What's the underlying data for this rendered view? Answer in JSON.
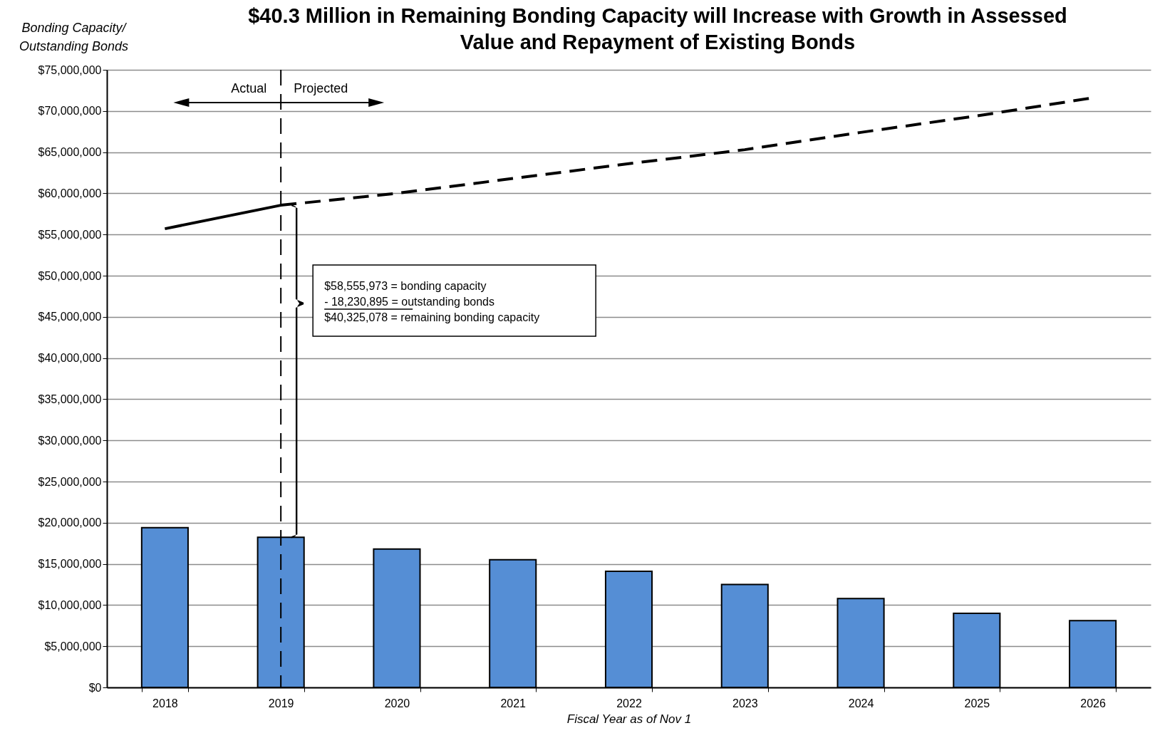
{
  "chart_data": {
    "type": "bar",
    "title": "$40.3 Million in Remaining Bonding Capacity will Increase with Growth in Assessed Value and Repayment of Existing Bonds",
    "xlabel": "Fiscal Year as of Nov 1",
    "ylabel": "Bonding Capacity/ Outstanding Bonds",
    "categories": [
      "2018",
      "2019",
      "2020",
      "2021",
      "2022",
      "2023",
      "2024",
      "2025",
      "2026"
    ],
    "series": [
      {
        "color": "#558ed5",
        "values": [
          19400000,
          18230895,
          16800000,
          15500000,
          14100000,
          12500000,
          10800000,
          9000000,
          8100000
        ]
      },
      {
        "type": "line",
        "color": "#000000",
        "line_style": "solid",
        "values": [
          55700000,
          58555973,
          null,
          null,
          null,
          null,
          null,
          null,
          null
        ]
      },
      {
        "type": "line",
        "color": "#000000",
        "line_style": "dashed",
        "values": [
          null,
          58555973,
          60000000,
          61800000,
          63600000,
          65300000,
          67400000,
          69400000,
          71600000
        ]
      }
    ],
    "ylim": [
      0,
      75000000
    ],
    "yticks": [
      {
        "value": 0,
        "label": "$0"
      },
      {
        "value": 5000000,
        "label": "$5,000,000"
      },
      {
        "value": 10000000,
        "label": "$10,000,000"
      },
      {
        "value": 15000000,
        "label": "$15,000,000"
      },
      {
        "value": 20000000,
        "label": "$20,000,000"
      },
      {
        "value": 25000000,
        "label": "$25,000,000"
      },
      {
        "value": 30000000,
        "label": "$30,000,000"
      },
      {
        "value": 35000000,
        "label": "$35,000,000"
      },
      {
        "value": 40000000,
        "label": "$40,000,000"
      },
      {
        "value": 45000000,
        "label": "$45,000,000"
      },
      {
        "value": 50000000,
        "label": "$50,000,000"
      },
      {
        "value": 55000000,
        "label": "$55,000,000"
      },
      {
        "value": 60000000,
        "label": "$60,000,000"
      },
      {
        "value": 65000000,
        "label": "$65,000,000"
      },
      {
        "value": 70000000,
        "label": "$70,000,000"
      },
      {
        "value": 75000000,
        "label": "$75,000,000"
      }
    ],
    "grid": "y",
    "ref_lines": [
      {
        "axis": "x",
        "value": "2019",
        "color": "#000000",
        "line_style": "dashed"
      }
    ],
    "annotations": [
      "Actual",
      "Projected",
      "$58,555,973 = bonding capacity",
      "-  18,230,895 = outstanding bonds",
      "$40,325,078 = remaining bonding capacity"
    ]
  }
}
